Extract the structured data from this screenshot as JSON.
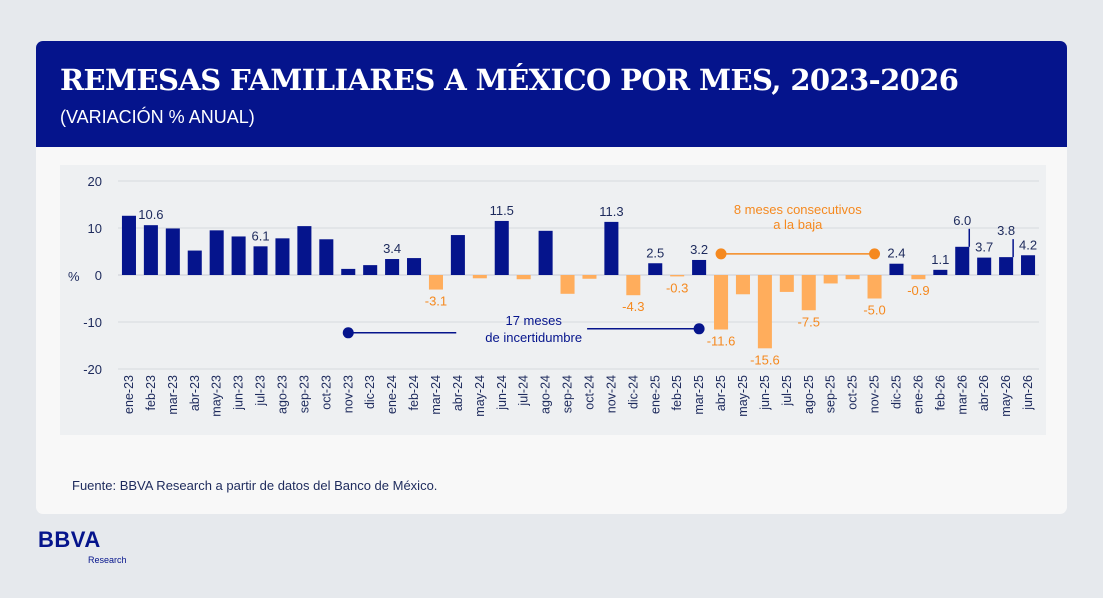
{
  "header": {
    "title": "REMESAS FAMILIARES A MÉXICO POR MES, 2023-2026",
    "subtitle": "(VARIACIÓN % ANUAL)"
  },
  "source": "Fuente: BBVA Research a partir de datos del Banco de México.",
  "logo": {
    "name": "BBVA",
    "sub": "Research"
  },
  "colors": {
    "positive": "#05148c",
    "negative": "#ffad5c",
    "annotation_orange": "#f5891f",
    "header_bg": "#05148c"
  },
  "chart_data": {
    "type": "bar",
    "ylabel": "%",
    "ylim": [
      -20,
      20
    ],
    "yticks": [
      -20,
      -10,
      0,
      10,
      20
    ],
    "grid": true,
    "categories": [
      "ene-23",
      "feb-23",
      "mar-23",
      "abr-23",
      "may-23",
      "jun-23",
      "jul-23",
      "ago-23",
      "sep-23",
      "oct-23",
      "nov-23",
      "dic-23",
      "ene-24",
      "feb-24",
      "mar-24",
      "abr-24",
      "may-24",
      "jun-24",
      "jul-24",
      "ago-24",
      "sep-24",
      "oct-24",
      "nov-24",
      "dic-24",
      "ene-25",
      "feb-25",
      "mar-25",
      "abr-25",
      "may-25",
      "jun-25",
      "jul-25",
      "ago-25",
      "sep-25",
      "oct-25",
      "nov-25",
      "dic-25",
      "ene-26",
      "feb-26",
      "mar-26",
      "abr-26",
      "may-26",
      "jun-26"
    ],
    "values": [
      12.6,
      10.6,
      9.9,
      5.2,
      9.5,
      8.2,
      6.1,
      7.8,
      10.4,
      7.6,
      1.3,
      2.1,
      3.4,
      3.6,
      -3.1,
      8.5,
      -0.7,
      11.5,
      -0.9,
      9.4,
      -4.0,
      -0.8,
      11.3,
      -4.3,
      2.5,
      -0.3,
      3.2,
      -11.6,
      -4.1,
      -15.6,
      -3.6,
      -7.5,
      -1.8,
      -0.9,
      -5.0,
      2.4,
      -0.9,
      1.1,
      6.0,
      3.7,
      3.8,
      4.2
    ],
    "data_labels": [
      {
        "index": 1,
        "text": "10.6"
      },
      {
        "index": 6,
        "text": "6.1"
      },
      {
        "index": 12,
        "text": "3.4"
      },
      {
        "index": 14,
        "text": "-3.1"
      },
      {
        "index": 17,
        "text": "11.5"
      },
      {
        "index": 22,
        "text": "11.3"
      },
      {
        "index": 23,
        "text": "-4.3"
      },
      {
        "index": 24,
        "text": "2.5"
      },
      {
        "index": 25,
        "text": "-0.3"
      },
      {
        "index": 26,
        "text": "3.2"
      },
      {
        "index": 27,
        "text": "-11.6"
      },
      {
        "index": 29,
        "text": "-15.6"
      },
      {
        "index": 31,
        "text": "-7.5"
      },
      {
        "index": 34,
        "text": "-5.0"
      },
      {
        "index": 35,
        "text": "2.4"
      },
      {
        "index": 36,
        "text": "-0.9"
      },
      {
        "index": 37,
        "text": "1.1"
      },
      {
        "index": 38,
        "text": "6.0"
      },
      {
        "index": 39,
        "text": "3.7"
      },
      {
        "index": 40,
        "text": "3.8"
      },
      {
        "index": 41,
        "text": "4.2"
      }
    ],
    "annotations": [
      {
        "lines": [
          "17 meses",
          "de incertidumbre"
        ],
        "from": "nov-23",
        "to": "mar-25",
        "y": -12.3,
        "color": "#05148c"
      },
      {
        "lines": [
          "8 meses consecutivos",
          "a la baja"
        ],
        "from": "abr-25",
        "to": "nov-25",
        "y": 4.5,
        "color": "#f5891f"
      }
    ]
  }
}
